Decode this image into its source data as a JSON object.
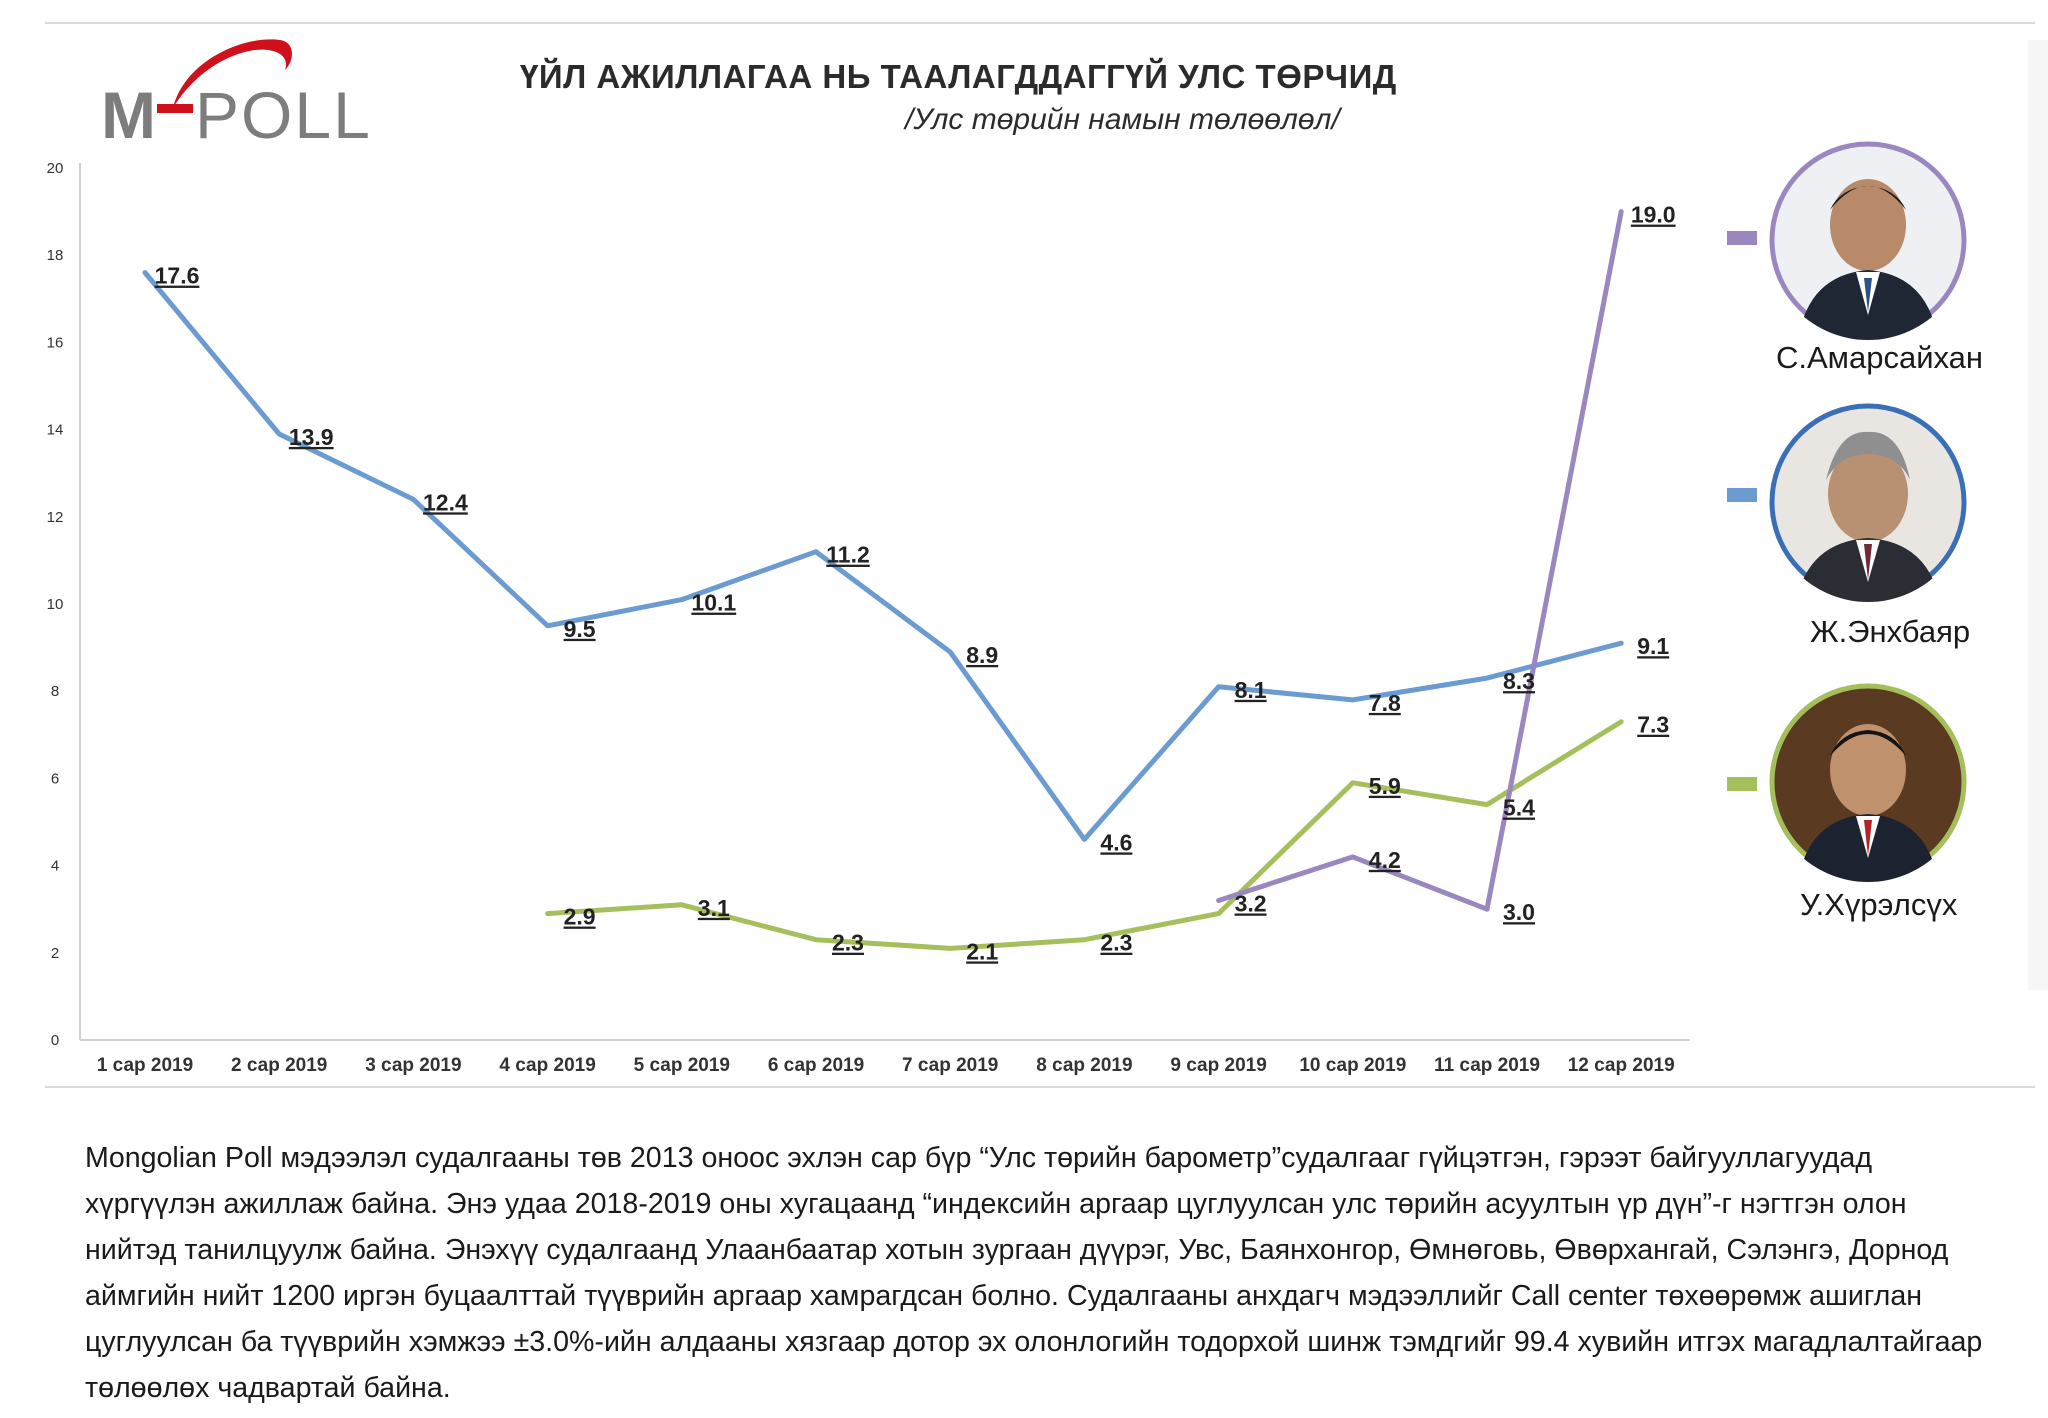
{
  "logo": {
    "text_left": "M",
    "text_right": "POLL",
    "dash_color": "#d0101a",
    "text_color": "#7d7d7d",
    "arc_color": "#d0101a"
  },
  "title": "ҮЙЛ АЖИЛЛАГАА НЬ ТААЛАГДДАГГҮЙ УЛС ТӨРЧИД",
  "subtitle": "/Улс төрийн намын төлөөлөл/",
  "chart_data": {
    "type": "line",
    "title": "ҮЙЛ АЖИЛЛАГАА НЬ ТААЛАГДДАГГҮЙ УЛС ТӨРЧИД",
    "subtitle": "/Улс төрийн намын төлөөлөл/",
    "categories": [
      "1 сар 2019",
      "2 сар 2019",
      "3 сар 2019",
      "4 сар 2019",
      "5 сар 2019",
      "6 сар 2019",
      "7 сар 2019",
      "8 сар 2019",
      "9 сар 2019",
      "10 сар 2019",
      "11 сар 2019",
      "12 сар 2019"
    ],
    "ylim": [
      0,
      20
    ],
    "yticks": [
      "0",
      "2",
      "4",
      "6",
      "8",
      "10",
      "12",
      "14",
      "16",
      "18",
      "20"
    ],
    "grid": false,
    "legend_position": "right",
    "series": [
      {
        "name": "Ж.Энхбаяр",
        "color": "#6b9bd1",
        "values": [
          17.6,
          13.9,
          12.4,
          9.5,
          10.1,
          11.2,
          8.9,
          4.6,
          8.1,
          7.8,
          8.3,
          9.1
        ],
        "labels": [
          "17.6",
          "13.9",
          "12.4",
          "9.5",
          "10.1",
          "11.2",
          "8.9",
          "4.6",
          "8.1",
          "7.8",
          "8.3",
          "9.1"
        ]
      },
      {
        "name": "У.Хүрэлсүх",
        "color": "#a4bf5c",
        "values": [
          null,
          null,
          null,
          2.9,
          3.1,
          2.3,
          2.1,
          2.3,
          2.9,
          5.9,
          5.4,
          7.3
        ],
        "labels": [
          null,
          null,
          null,
          "2.9",
          "3.1",
          "2.3",
          "2.1",
          "2.3",
          null,
          "5.9",
          "5.4",
          "7.3"
        ]
      },
      {
        "name": "С.Амарсайхан",
        "color": "#9b87bf",
        "values": [
          null,
          null,
          null,
          null,
          null,
          null,
          null,
          null,
          3.2,
          4.2,
          3.0,
          19.0
        ],
        "labels": [
          null,
          null,
          null,
          null,
          null,
          null,
          null,
          null,
          "3.2",
          "4.2",
          "3.0",
          "19.0"
        ]
      }
    ]
  },
  "candidates": [
    {
      "name": "С.Амарсайхан",
      "ring_color": "#9b87bf",
      "legend_color": "#9b87bf",
      "photo_icon": "person-portrait-icon"
    },
    {
      "name": "Ж.Энхбаяр",
      "ring_color": "#3a6fb7",
      "legend_color": "#6b9bd1",
      "photo_icon": "person-portrait-icon"
    },
    {
      "name": "У.Хүрэлсүх",
      "ring_color": "#a4bf5c",
      "legend_color": "#a4bf5c",
      "photo_icon": "person-portrait-icon"
    }
  ],
  "footnote": "Mongolian Poll мэдээлэл судалгааны төв 2013 оноос эхлэн сар бүр “Улс төрийн барометр”судалгааг гүйцэтгэн, гэрээт байгууллагуудад хүргүүлэн ажиллаж байна. Энэ удаа 2018-2019 оны хугацаанд “индексийн аргаар цуглуулсан улс төрийн асуултын үр дүн”-г нэгтгэн олон нийтэд танилцуулж байна.  Энэхүү судалгаанд Улаанбаатар хотын зургаан дүүрэг, Увс, Баянхонгор, Өмнөговь, Өвөрхангай, Сэлэнгэ, Дорнод аймгийн нийт 1200 иргэн буцаалттай түүврийн аргаар хамрагдсан болно. Судалгааны анхдагч мэдээллийг Call center төхөөрөмж ашиглан цуглуулсан ба түүврийн хэмжээ ±3.0%-ийн алдааны хязгаар дотор эх олонлогийн тодорхой шинж тэмдгийг 99.4 хувийн итгэх магадлалтайгаар төлөөлөх чадвартай байна."
}
